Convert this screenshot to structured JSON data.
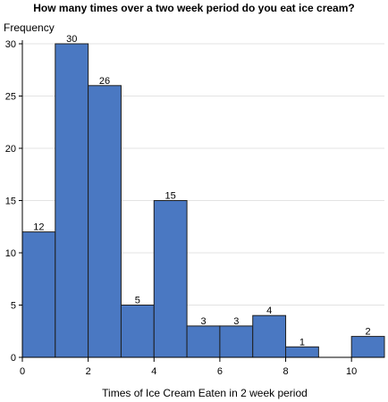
{
  "chart_data": {
    "type": "bar",
    "title": "How many times over a two week period do you eat ice cream?",
    "xlabel": "Times of Ice Cream Eaten in 2 week period",
    "ylabel": "Frequency",
    "xlim": [
      0,
      11
    ],
    "ylim": [
      0,
      30
    ],
    "xticks": [
      0,
      2,
      4,
      6,
      8,
      10
    ],
    "yticks": [
      0,
      5,
      10,
      15,
      20,
      25,
      30
    ],
    "grid": true,
    "bar_color": "#4a78c2",
    "bins": [
      {
        "x0": 0,
        "x1": 1,
        "value": 12
      },
      {
        "x0": 1,
        "x1": 2,
        "value": 30
      },
      {
        "x0": 2,
        "x1": 3,
        "value": 26
      },
      {
        "x0": 3,
        "x1": 4,
        "value": 5
      },
      {
        "x0": 4,
        "x1": 5,
        "value": 15
      },
      {
        "x0": 5,
        "x1": 6,
        "value": 3
      },
      {
        "x0": 6,
        "x1": 7,
        "value": 3
      },
      {
        "x0": 7,
        "x1": 8,
        "value": 4
      },
      {
        "x0": 8,
        "x1": 9,
        "value": 1
      },
      {
        "x0": 10,
        "x1": 11,
        "value": 2
      }
    ]
  }
}
